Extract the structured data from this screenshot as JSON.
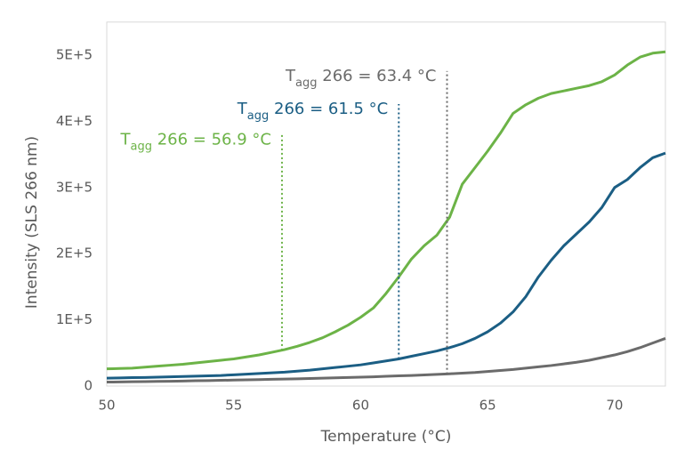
{
  "chart_data": {
    "type": "line",
    "x_label": "Temperature (°C)",
    "y_label": "Intensity (SLS 266 nm)",
    "x": [
      50,
      50.5,
      51,
      51.5,
      52,
      52.5,
      53,
      53.5,
      54,
      54.5,
      55,
      55.5,
      56,
      56.5,
      57,
      57.5,
      58,
      58.5,
      59,
      59.5,
      60,
      60.5,
      61,
      61.5,
      62,
      62.5,
      63,
      63.5,
      64,
      64.5,
      65,
      65.5,
      66,
      66.5,
      67,
      67.5,
      68,
      68.5,
      69,
      69.5,
      70,
      70.5,
      71,
      71.5,
      72
    ],
    "series": [
      {
        "color": "#6cb347",
        "values": [
          26000,
          26500,
          27000,
          28500,
          30000,
          31500,
          33000,
          35000,
          37000,
          39000,
          41000,
          44000,
          47000,
          51000,
          55000,
          60000,
          66000,
          73000,
          82000,
          92000,
          104000,
          118000,
          140000,
          165000,
          192000,
          212000,
          228000,
          255000,
          305000,
          330000,
          355000,
          382000,
          412000,
          425000,
          435000,
          442000,
          446000,
          450000,
          454000,
          460000,
          470000,
          485000,
          497000,
          503000,
          505000
        ]
      },
      {
        "color": "#1b5e84",
        "values": [
          12000,
          12300,
          12700,
          13000,
          13500,
          14000,
          14500,
          15000,
          15500,
          16000,
          17000,
          18000,
          19000,
          20000,
          21000,
          22500,
          24000,
          26000,
          28000,
          30000,
          32000,
          35000,
          38000,
          41000,
          45000,
          49000,
          53000,
          58000,
          64000,
          72000,
          82000,
          95000,
          112000,
          135000,
          165000,
          190000,
          212000,
          230000,
          248000,
          270000,
          300000,
          312000,
          330000,
          345000,
          352000
        ]
      },
      {
        "color": "#6b6b6b",
        "values": [
          6000,
          6200,
          6500,
          6800,
          7000,
          7300,
          7600,
          8000,
          8300,
          8700,
          9000,
          9400,
          9800,
          10200,
          10600,
          11000,
          11500,
          12000,
          12500,
          13000,
          13500,
          14000,
          14700,
          15400,
          16000,
          16800,
          17600,
          18500,
          19500,
          20500,
          22000,
          23500,
          25000,
          27000,
          29000,
          31000,
          33500,
          36000,
          39000,
          43000,
          47000,
          52000,
          58000,
          65000,
          72000
        ]
      }
    ],
    "annotations": [
      {
        "text": [
          "T",
          "agg",
          " 266 = 56.9 °C"
        ],
        "x": 56.9,
        "y_range": [
          54000,
          380000
        ],
        "color": "#6cb347"
      },
      {
        "text": [
          "T",
          "agg",
          " 266 = 61.5 °C"
        ],
        "x": 61.5,
        "y_range": [
          41000,
          426000
        ],
        "color": "#1b5e84"
      },
      {
        "text": [
          "T",
          "agg",
          " 266 = 63.4 °C"
        ],
        "x": 63.4,
        "y_range": [
          18000,
          476000
        ],
        "color": "#6b6b6b"
      }
    ],
    "xlim": [
      50,
      72
    ],
    "xticks": [
      50,
      55,
      60,
      65,
      70
    ],
    "ylim": [
      0,
      550000
    ],
    "yticks": [
      0,
      {
        "value": 100000,
        "label": "1E+5"
      },
      {
        "value": 200000,
        "label": "2E+5"
      },
      {
        "value": 300000,
        "label": "3E+5"
      },
      {
        "value": 400000,
        "label": "4E+5"
      },
      {
        "value": 500000,
        "label": "5E+5"
      }
    ],
    "grid": false
  }
}
